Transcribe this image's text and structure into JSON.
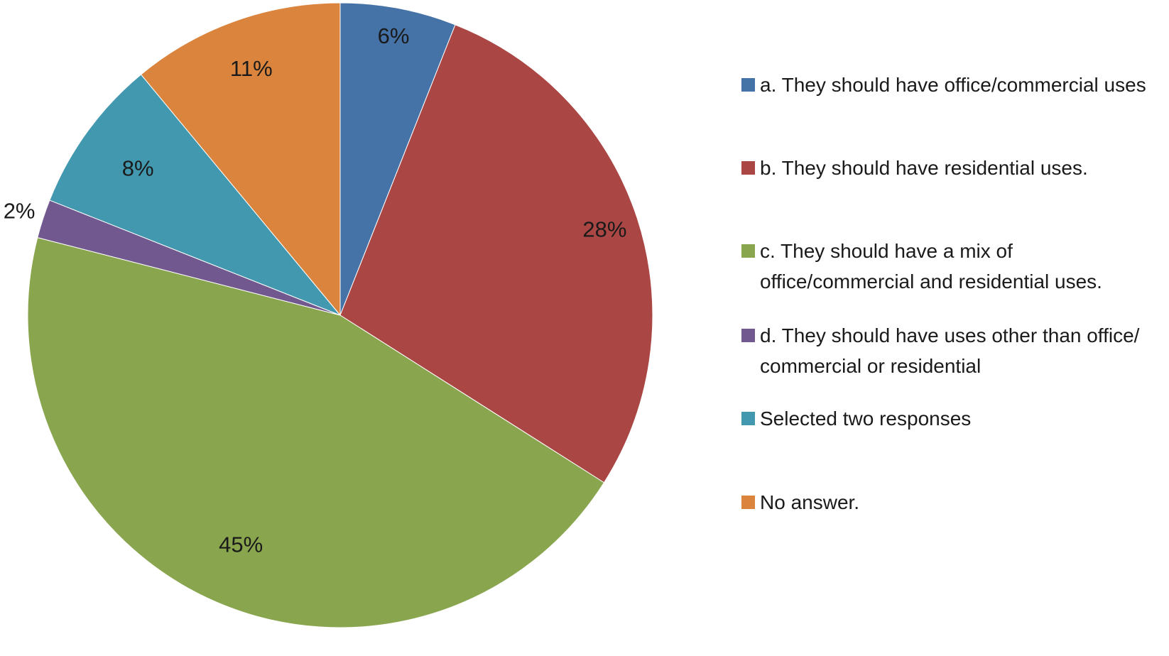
{
  "chart_data": {
    "type": "pie",
    "slices": [
      {
        "label": "a. They should have office/commercial uses",
        "value": 6,
        "display": "6%",
        "color": "#4572a7"
      },
      {
        "label": "b. They should have residential uses.",
        "value": 28,
        "display": "28%",
        "color": "#aa4643"
      },
      {
        "label": "c. They should have a mix of office/commercial and residential uses.",
        "value": 45,
        "display": "45%",
        "color": "#89a54e"
      },
      {
        "label": "d. They should have uses other than office/ commercial or residential",
        "value": 2,
        "display": "2%",
        "color": "#71588f"
      },
      {
        "label": "Selected two responses",
        "value": 8,
        "display": "8%",
        "color": "#4198af"
      },
      {
        "label": "No answer.",
        "value": 11,
        "display": "11%",
        "color": "#db843d"
      }
    ],
    "legend_position": "right"
  }
}
